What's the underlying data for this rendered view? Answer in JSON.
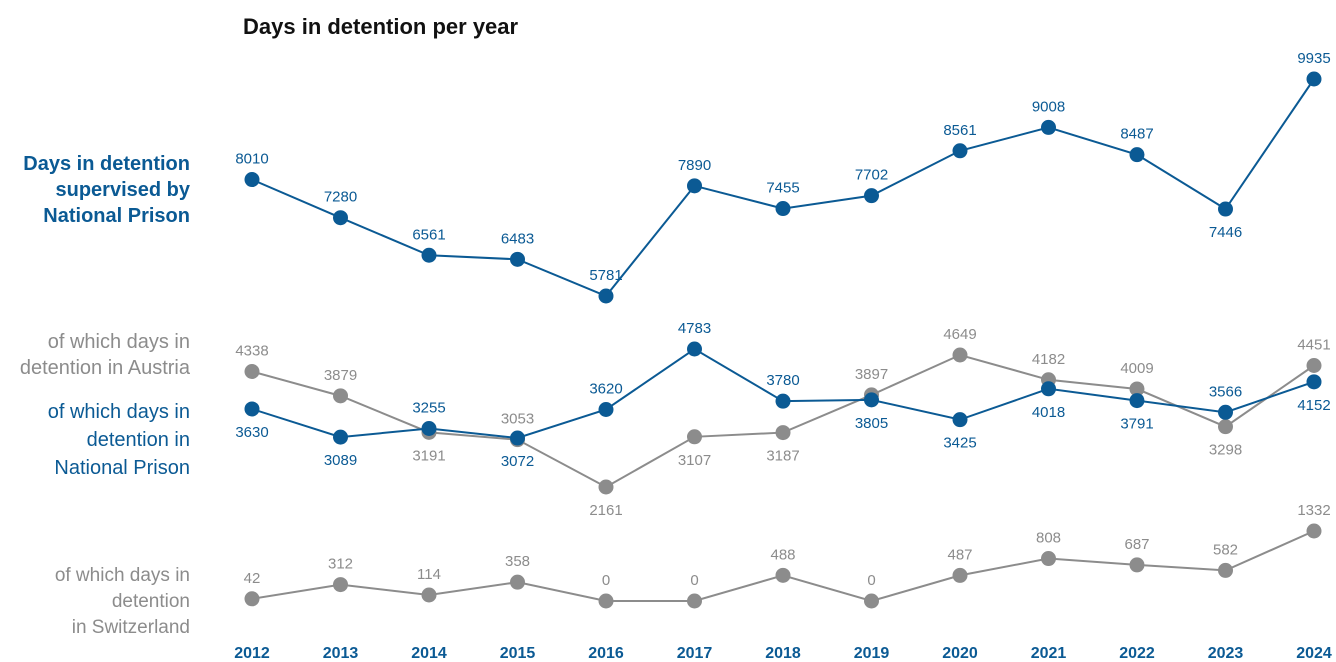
{
  "chart_data": {
    "type": "line",
    "title": "Days in detention per year",
    "categories": [
      "2012",
      "2013",
      "2014",
      "2015",
      "2016",
      "2017",
      "2018",
      "2019",
      "2020",
      "2021",
      "2022",
      "2023",
      "2024"
    ],
    "series": [
      {
        "name": "Days in detention supervised by National Prison",
        "label_lines": [
          "Days in detention",
          "supervised by",
          "National Prison"
        ],
        "color": "#0b5a94",
        "values": [
          8010,
          7280,
          6561,
          6483,
          5781,
          7890,
          7455,
          7702,
          8561,
          9008,
          8487,
          7446,
          9935
        ]
      },
      {
        "name": "of which days in detention in Austria",
        "label_lines": [
          "of which days in",
          "detention in Austria"
        ],
        "color": "#8c8c8c",
        "values": [
          4338,
          3879,
          3191,
          3053,
          2161,
          3107,
          3187,
          3897,
          4649,
          4182,
          4009,
          3298,
          4451
        ]
      },
      {
        "name": "of which days in detention in National Prison",
        "label_lines": [
          "of which days in",
          "detention in",
          "National Prison"
        ],
        "color": "#0b5a94",
        "values": [
          3630,
          3089,
          3255,
          3072,
          3620,
          4783,
          3780,
          3805,
          3425,
          4018,
          3791,
          3566,
          4152
        ]
      },
      {
        "name": "of which days in detention in Switzerland",
        "label_lines": [
          "of which days in",
          "detention",
          "in Switzerland"
        ],
        "color": "#8c8c8c",
        "values": [
          42,
          312,
          114,
          358,
          0,
          0,
          488,
          0,
          487,
          808,
          687,
          582,
          1332
        ]
      }
    ]
  }
}
